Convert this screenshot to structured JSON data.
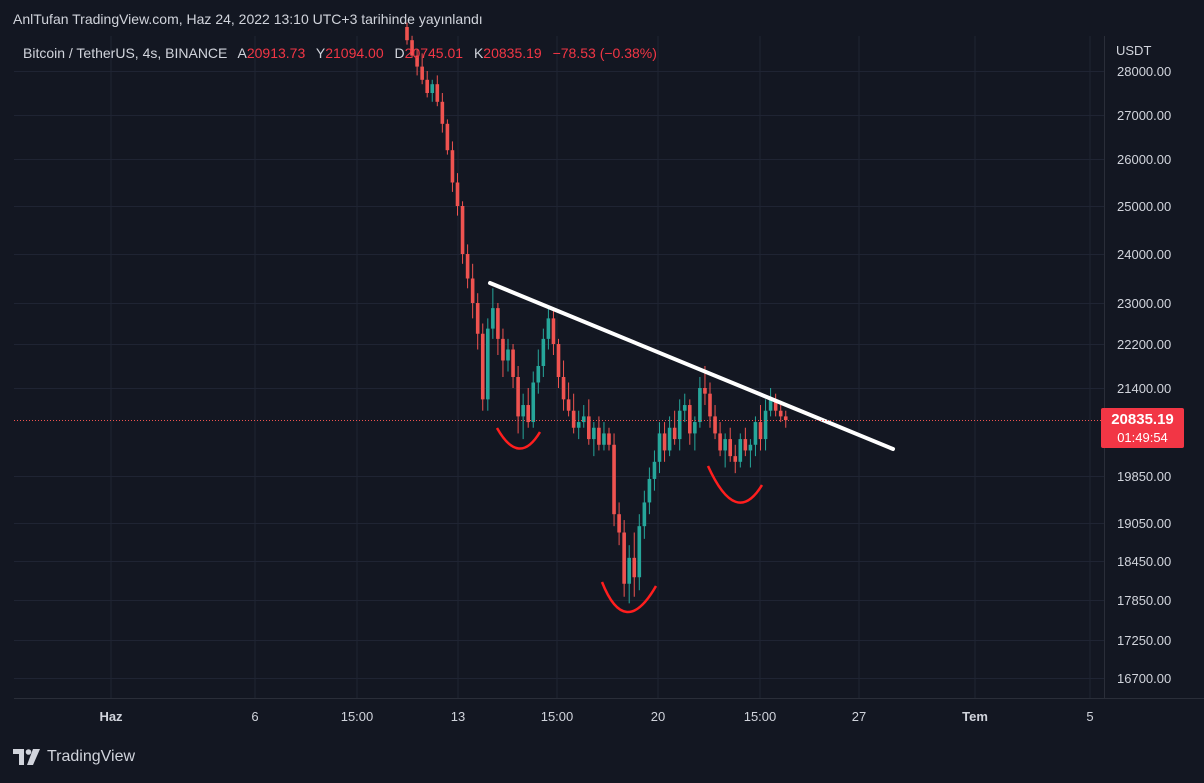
{
  "header": {
    "publisher_line": "AnlTufan TradingView.com, Haz 24, 2022 13:10 UTC+3 tarihinde yayınlandı"
  },
  "legend": {
    "symbol": "Bitcoin / TetherUS, 4s, BINANCE",
    "o_label": "A",
    "o_value": "20913.73",
    "h_label": "Y",
    "h_value": "21094.00",
    "l_label": "D",
    "l_value": "20745.01",
    "c_label": "K",
    "c_value": "20835.19",
    "change": "−78.53 (−0.38%)"
  },
  "price_axis": {
    "unit": "USDT"
  },
  "last_price": {
    "value": "20835.19",
    "countdown": "01:49:54"
  },
  "footer": {
    "brand": "TradingView"
  },
  "colors": {
    "background": "#131722",
    "up": "#26a69a",
    "down": "#ef5350",
    "grid": "#1f2433",
    "trendline": "#ffffff",
    "pattern": "#ff1e1e",
    "badge": "#f23645"
  },
  "chart_data": {
    "type": "candlestick",
    "y_ticks": [
      28000,
      27000,
      26000,
      25000,
      24000,
      23000,
      22200,
      21400,
      19850,
      19050,
      18450,
      17850,
      17250,
      16700
    ],
    "y_tick_labels": [
      "28000.00",
      "27000.00",
      "26000.00",
      "25000.00",
      "24000.00",
      "23000.00",
      "22200.00",
      "21400.00",
      "19850.00",
      "19050.00",
      "18450.00",
      "17850.00",
      "17250.00",
      "16700.00"
    ],
    "x_tick_labels": [
      {
        "label": "Haz",
        "bold": true
      },
      {
        "label": "6",
        "bold": false
      },
      {
        "label": "15:00",
        "bold": false
      },
      {
        "label": "13",
        "bold": false
      },
      {
        "label": "15:00",
        "bold": false
      },
      {
        "label": "20",
        "bold": false
      },
      {
        "label": "15:00",
        "bold": false
      },
      {
        "label": "27",
        "bold": false
      },
      {
        "label": "Tem",
        "bold": true
      },
      {
        "label": "5",
        "bold": false
      }
    ],
    "last_price": 20835.19,
    "trendline": [
      [
        23400,
        "2022-06-14"
      ],
      [
        20400,
        "2022-06-28"
      ]
    ],
    "candles": [
      [
        29000,
        29100,
        28600,
        28700
      ],
      [
        28700,
        28800,
        28300,
        28350
      ],
      [
        28350,
        28500,
        27900,
        28100
      ],
      [
        28100,
        28400,
        27700,
        27800
      ],
      [
        27800,
        28000,
        27400,
        27500
      ],
      [
        27500,
        27800,
        27300,
        27700
      ],
      [
        27700,
        27900,
        27200,
        27300
      ],
      [
        27300,
        27500,
        26600,
        26800
      ],
      [
        26800,
        26900,
        26100,
        26200
      ],
      [
        26200,
        26400,
        25300,
        25500
      ],
      [
        25500,
        25700,
        24800,
        25000
      ],
      [
        25000,
        25100,
        23800,
        24000
      ],
      [
        24000,
        24200,
        23300,
        23500
      ],
      [
        23500,
        23800,
        22700,
        23000
      ],
      [
        23000,
        23200,
        22100,
        22400
      ],
      [
        22400,
        22600,
        21000,
        21200
      ],
      [
        21200,
        22700,
        21000,
        22500
      ],
      [
        22500,
        23300,
        22300,
        22900
      ],
      [
        22900,
        23000,
        22000,
        22300
      ],
      [
        22300,
        22500,
        21600,
        21900
      ],
      [
        21900,
        22300,
        21700,
        22100
      ],
      [
        22100,
        22200,
        21400,
        21600
      ],
      [
        21600,
        21800,
        20600,
        20900
      ],
      [
        20900,
        21300,
        20500,
        21100
      ],
      [
        21100,
        21400,
        20700,
        20800
      ],
      [
        20800,
        21700,
        20700,
        21500
      ],
      [
        21500,
        22100,
        21300,
        21800
      ],
      [
        21800,
        22500,
        21600,
        22300
      ],
      [
        22300,
        22900,
        22100,
        22700
      ],
      [
        22700,
        22900,
        22000,
        22200
      ],
      [
        22200,
        22300,
        21400,
        21600
      ],
      [
        21600,
        21900,
        21000,
        21200
      ],
      [
        21200,
        21500,
        20900,
        21000
      ],
      [
        21000,
        21300,
        20600,
        20700
      ],
      [
        20700,
        21000,
        20500,
        20800
      ],
      [
        20800,
        21100,
        20700,
        20900
      ],
      [
        20900,
        21200,
        20400,
        20500
      ],
      [
        20500,
        20800,
        20200,
        20700
      ],
      [
        20700,
        20900,
        20300,
        20400
      ],
      [
        20400,
        20800,
        20300,
        20600
      ],
      [
        20600,
        20700,
        20300,
        20400
      ],
      [
        20400,
        20600,
        19000,
        19200
      ],
      [
        19200,
        19400,
        18700,
        18900
      ],
      [
        18900,
        19100,
        17900,
        18100
      ],
      [
        18100,
        18700,
        17800,
        18500
      ],
      [
        18500,
        18900,
        17900,
        18200
      ],
      [
        18200,
        19200,
        18000,
        19000
      ],
      [
        19000,
        19600,
        18800,
        19400
      ],
      [
        19400,
        20000,
        19200,
        19800
      ],
      [
        19800,
        20300,
        19600,
        20100
      ],
      [
        20100,
        20800,
        19900,
        20600
      ],
      [
        20600,
        20800,
        20100,
        20300
      ],
      [
        20300,
        20900,
        20200,
        20700
      ],
      [
        20700,
        21000,
        20400,
        20500
      ],
      [
        20500,
        21200,
        20300,
        21000
      ],
      [
        21000,
        21300,
        20800,
        21100
      ],
      [
        21100,
        21200,
        20400,
        20600
      ],
      [
        20600,
        20900,
        20300,
        20800
      ],
      [
        20800,
        21600,
        20700,
        21400
      ],
      [
        21400,
        21800,
        21100,
        21300
      ],
      [
        21300,
        21500,
        20700,
        20900
      ],
      [
        20900,
        21100,
        20500,
        20600
      ],
      [
        20600,
        20800,
        20200,
        20300
      ],
      [
        20300,
        20600,
        20000,
        20500
      ],
      [
        20500,
        20700,
        20100,
        20200
      ],
      [
        20200,
        20400,
        19900,
        20100
      ],
      [
        20100,
        20600,
        20000,
        20500
      ],
      [
        20500,
        20700,
        20200,
        20300
      ],
      [
        20300,
        20500,
        20000,
        20400
      ],
      [
        20400,
        20900,
        20200,
        20800
      ],
      [
        20800,
        21100,
        20300,
        20500
      ],
      [
        20500,
        21200,
        20300,
        21000
      ],
      [
        21000,
        21400,
        20900,
        21200
      ],
      [
        21200,
        21300,
        20900,
        21000
      ],
      [
        21000,
        21100,
        20800,
        20900
      ],
      [
        20900,
        21000,
        20700,
        20835
      ]
    ]
  }
}
